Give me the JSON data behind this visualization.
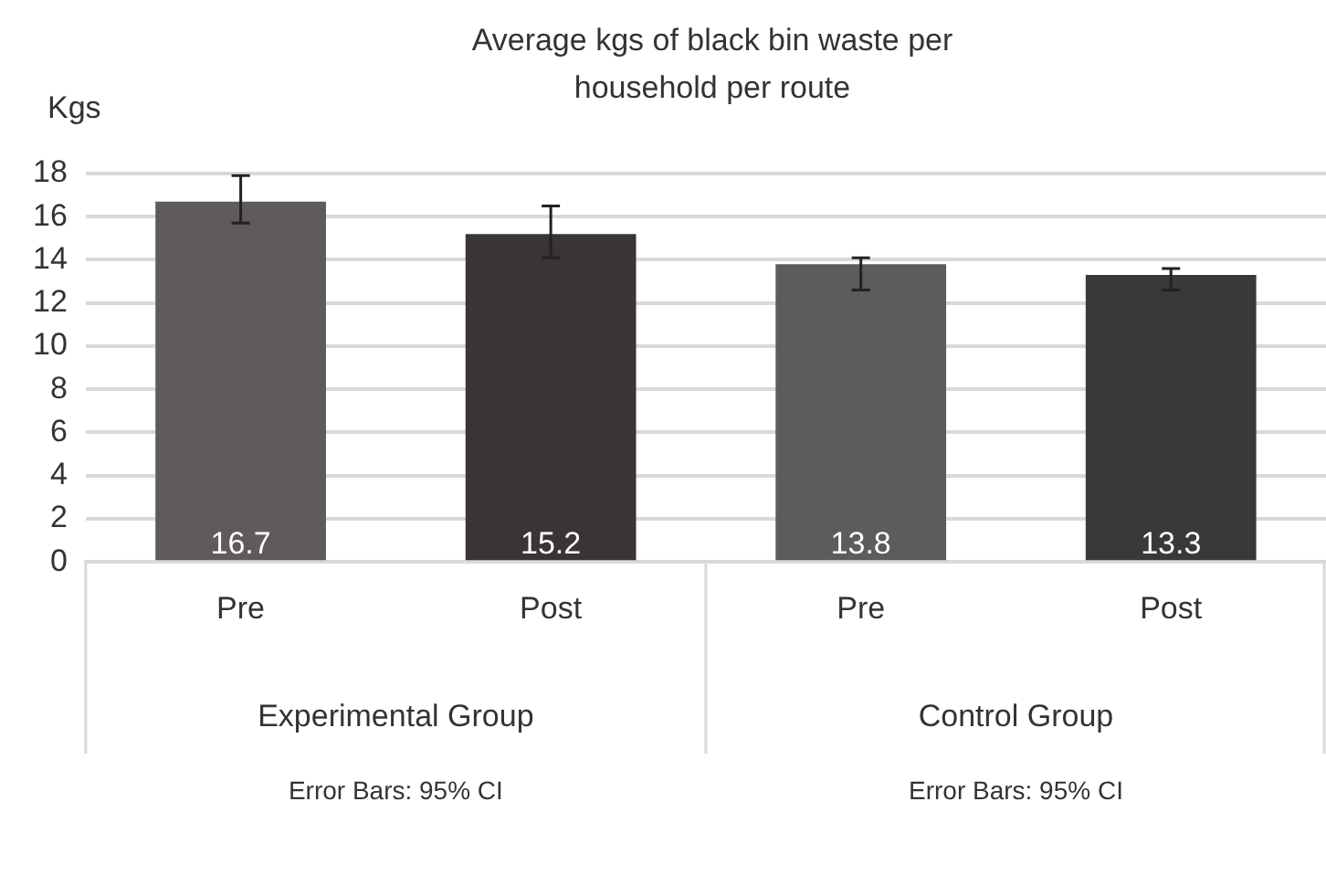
{
  "chart_data": {
    "type": "bar",
    "title": "Average kgs of black bin waste per household per route",
    "ylabel": "Kgs",
    "categories": [
      "Pre",
      "Post",
      "Pre",
      "Post"
    ],
    "values": [
      16.7,
      15.2,
      13.8,
      13.3
    ],
    "colors": [
      "#5f5a5c",
      "#3a3535",
      "#5c5c5c",
      "#373a39"
    ],
    "errors": [
      [
        15.7,
        17.9
      ],
      [
        14.1,
        16.5
      ],
      [
        12.6,
        14.1
      ],
      [
        12.6,
        13.6
      ]
    ],
    "data_labels": true,
    "ylim": [
      0,
      18
    ],
    "yticks": [
      0,
      2,
      4,
      6,
      8,
      10,
      12,
      14,
      16,
      18
    ],
    "grid": "y",
    "legend": false,
    "annotations": [
      "Experimental Group",
      "Control Group",
      "Error Bars: 95% CI",
      "Error Bars: 95% CI"
    ]
  }
}
